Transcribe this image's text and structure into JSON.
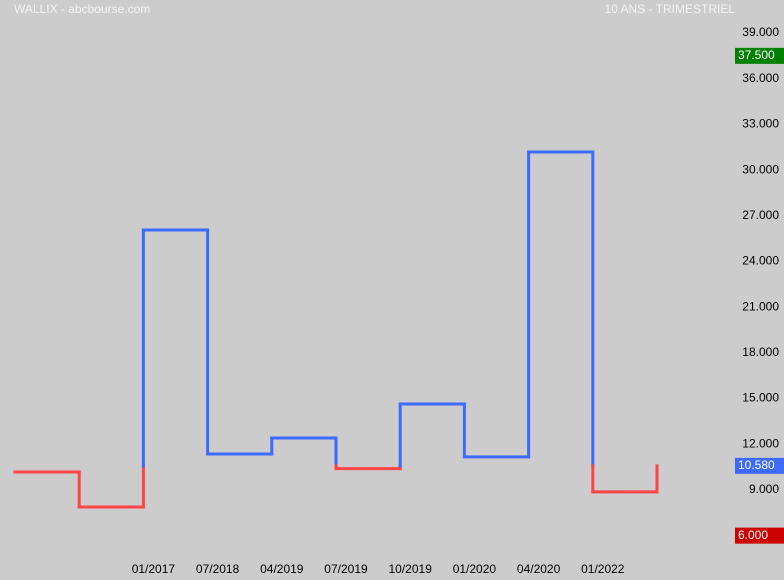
{
  "chart_data": {
    "type": "step",
    "title": "WALLIX - abcbourse.com",
    "subtitle": "10 ANS - TRIMESTRIEL",
    "categories": [
      null,
      null,
      "01/2017",
      "07/2018",
      "04/2019",
      "07/2019",
      "10/2019",
      "01/2020",
      "04/2020",
      "01/2022",
      null
    ],
    "values": [
      10.18,
      7.88,
      26.07,
      11.36,
      12.41,
      10.4,
      14.64,
      11.17,
      31.19,
      8.87,
      10.58
    ],
    "color_above": "#3d6bff",
    "color_below": "#ff4444",
    "ylim": [
      4.4,
      39
    ],
    "yticks": [
      {
        "value": 9,
        "label": "9.000"
      },
      {
        "value": 12,
        "label": "12.000"
      },
      {
        "value": 15,
        "label": "15.000"
      },
      {
        "value": 18,
        "label": "18.000"
      },
      {
        "value": 21,
        "label": "21.000"
      },
      {
        "value": 24,
        "label": "24.000"
      },
      {
        "value": 27,
        "label": "27.000"
      },
      {
        "value": 30,
        "label": "30.000"
      },
      {
        "value": 33,
        "label": "33.000"
      },
      {
        "value": 36,
        "label": "36.000"
      },
      {
        "value": 39,
        "label": "39.000"
      }
    ],
    "markers": [
      {
        "value": 37.5,
        "label": "37.500",
        "color": "#008000"
      },
      {
        "value": 10.58,
        "label": "10.580",
        "color": "#3d6bff"
      },
      {
        "value": 6,
        "label": "6.000",
        "color": "#cc0000"
      }
    ]
  }
}
